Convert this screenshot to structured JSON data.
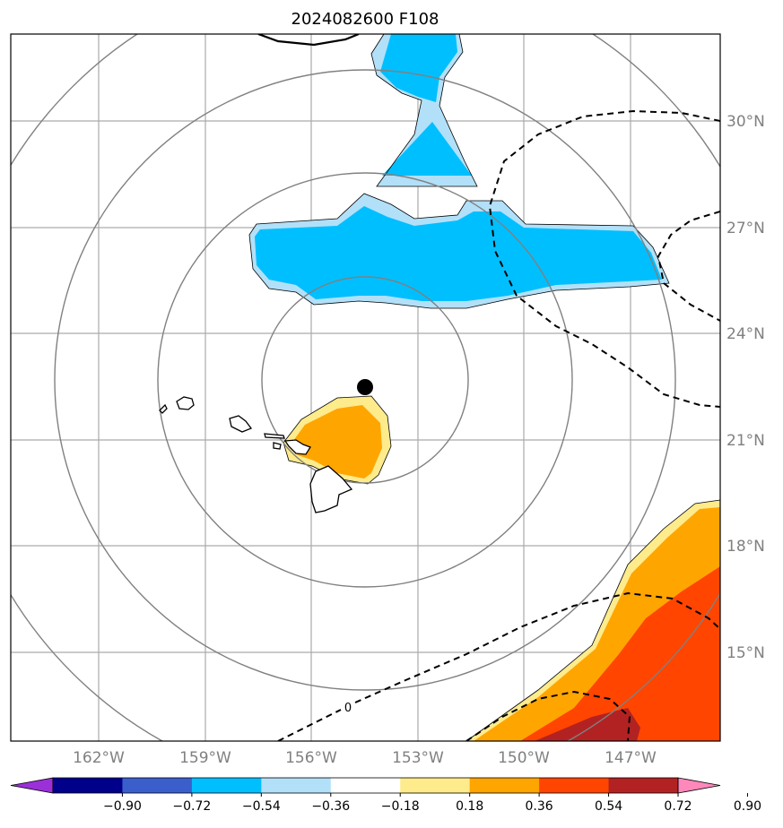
{
  "title": "2024082600 F108",
  "lon_labels": [
    "162°W",
    "159°W",
    "156°W",
    "153°W",
    "150°W",
    "147°W"
  ],
  "lat_labels": [
    "30°N",
    "27°N",
    "24°N",
    "21°N",
    "18°N",
    "15°N"
  ],
  "contour_label": "0",
  "colorbar": {
    "ticks": [
      "−0.90",
      "−0.72",
      "−0.54",
      "−0.36",
      "−0.18",
      "0.18",
      "0.36",
      "0.54",
      "0.72",
      "0.90"
    ],
    "colors": [
      "#9b30d8",
      "#00008b",
      "#3a5fcd",
      "#00bfff",
      "#b2e0f8",
      "#ffffff",
      "#fdeb8c",
      "#ffa500",
      "#ff4500",
      "#b22222",
      "#ff88bb"
    ]
  }
}
